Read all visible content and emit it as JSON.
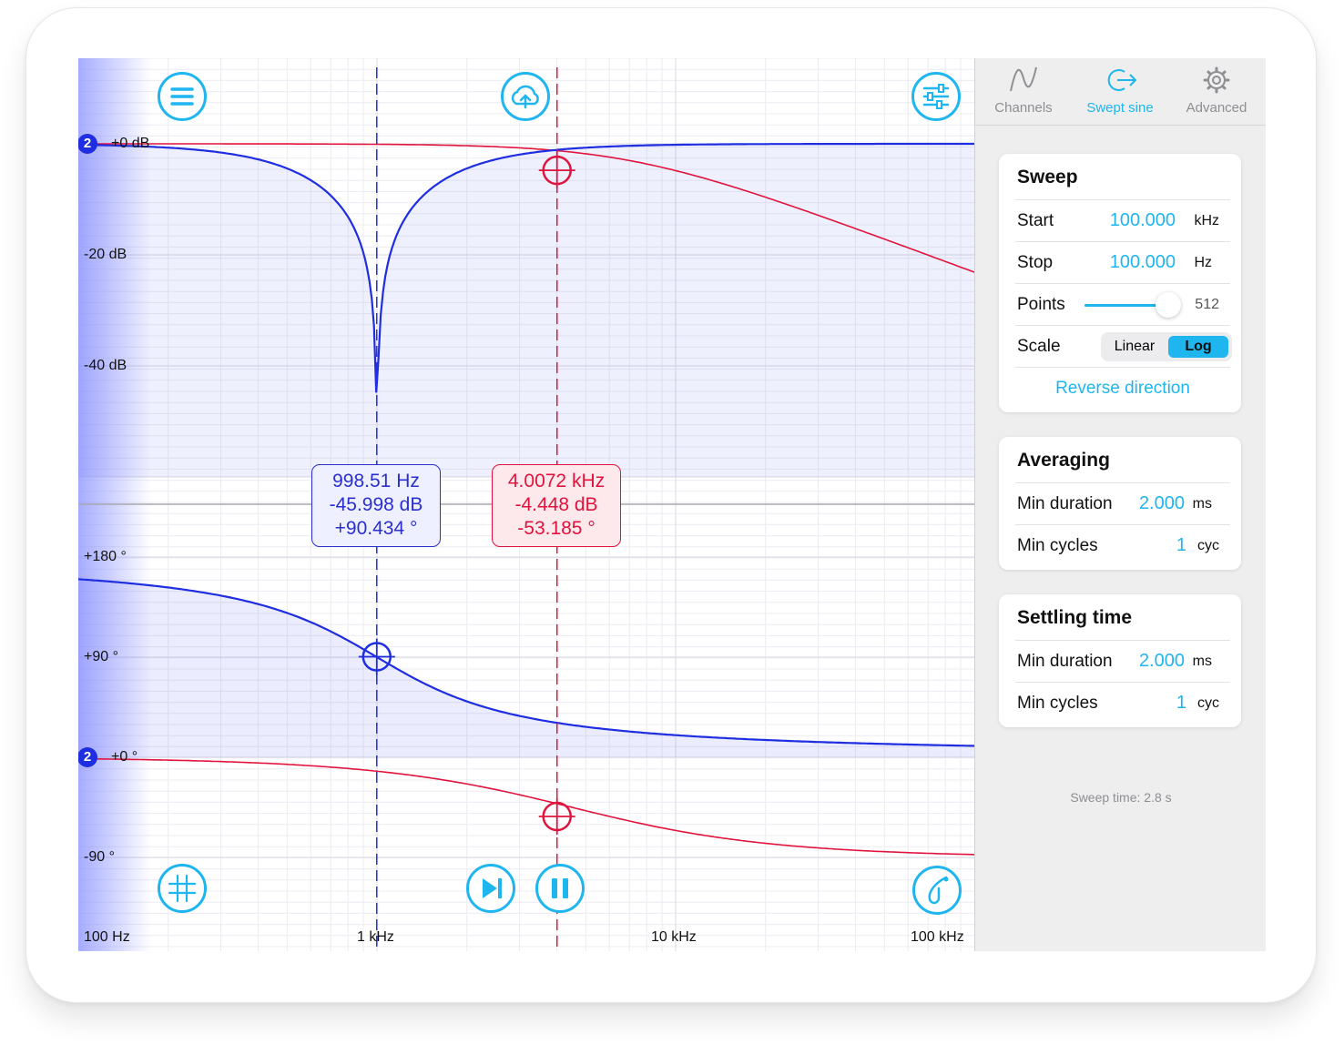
{
  "plot": {
    "y_labels_mag": [
      "+0 dB",
      "-20 dB",
      "-40 dB"
    ],
    "y_labels_phase": [
      "+180 °",
      "+90 °",
      "+0 °",
      "-90 °"
    ],
    "x_labels": [
      "100 Hz",
      "1 kHz",
      "10 kHz",
      "100 kHz"
    ],
    "channel_badge": "2",
    "cursor_blue": {
      "freq": "998.51 Hz",
      "mag": "-45.998 dB",
      "phase": "+90.434 °"
    },
    "cursor_red": {
      "freq": "4.0072 kHz",
      "mag": "-4.448 dB",
      "phase": "-53.185 °"
    },
    "colors": {
      "blue": "#1f2ee0",
      "red": "#e0143c",
      "accent": "#1fb5ef"
    },
    "icons": {
      "menu": "menu-icon",
      "upload": "cloud-upload-icon",
      "settings": "sliders-icon",
      "grid": "grid-icon",
      "step": "step-forward-icon",
      "pause": "pause-icon",
      "tuning": "tuning-fork-icon"
    }
  },
  "tabs": [
    {
      "label": "Channels",
      "icon": "sine-wave-icon",
      "active": false
    },
    {
      "label": "Swept sine",
      "icon": "swept-sine-icon",
      "active": true
    },
    {
      "label": "Advanced",
      "icon": "gear-icon",
      "active": false
    }
  ],
  "sweep": {
    "title": "Sweep",
    "start_label": "Start",
    "start_value": "100.000",
    "start_unit": "kHz",
    "stop_label": "Stop",
    "stop_value": "100.000",
    "stop_unit": "Hz",
    "points_label": "Points",
    "points_value": "512",
    "points_fraction": 0.9,
    "scale_label": "Scale",
    "scale_options": [
      "Linear",
      "Log"
    ],
    "scale_selected": "Log",
    "reverse_label": "Reverse direction"
  },
  "averaging": {
    "title": "Averaging",
    "min_duration_label": "Min duration",
    "min_duration_value": "2.000",
    "min_duration_unit": "ms",
    "min_cycles_label": "Min cycles",
    "min_cycles_value": "1",
    "min_cycles_unit": "cyc"
  },
  "settling": {
    "title": "Settling time",
    "min_duration_label": "Min duration",
    "min_duration_value": "2.000",
    "min_duration_unit": "ms",
    "min_cycles_label": "Min cycles",
    "min_cycles_value": "1",
    "min_cycles_unit": "cyc"
  },
  "footer": {
    "sweep_time": "Sweep time: 2.8 s"
  }
}
